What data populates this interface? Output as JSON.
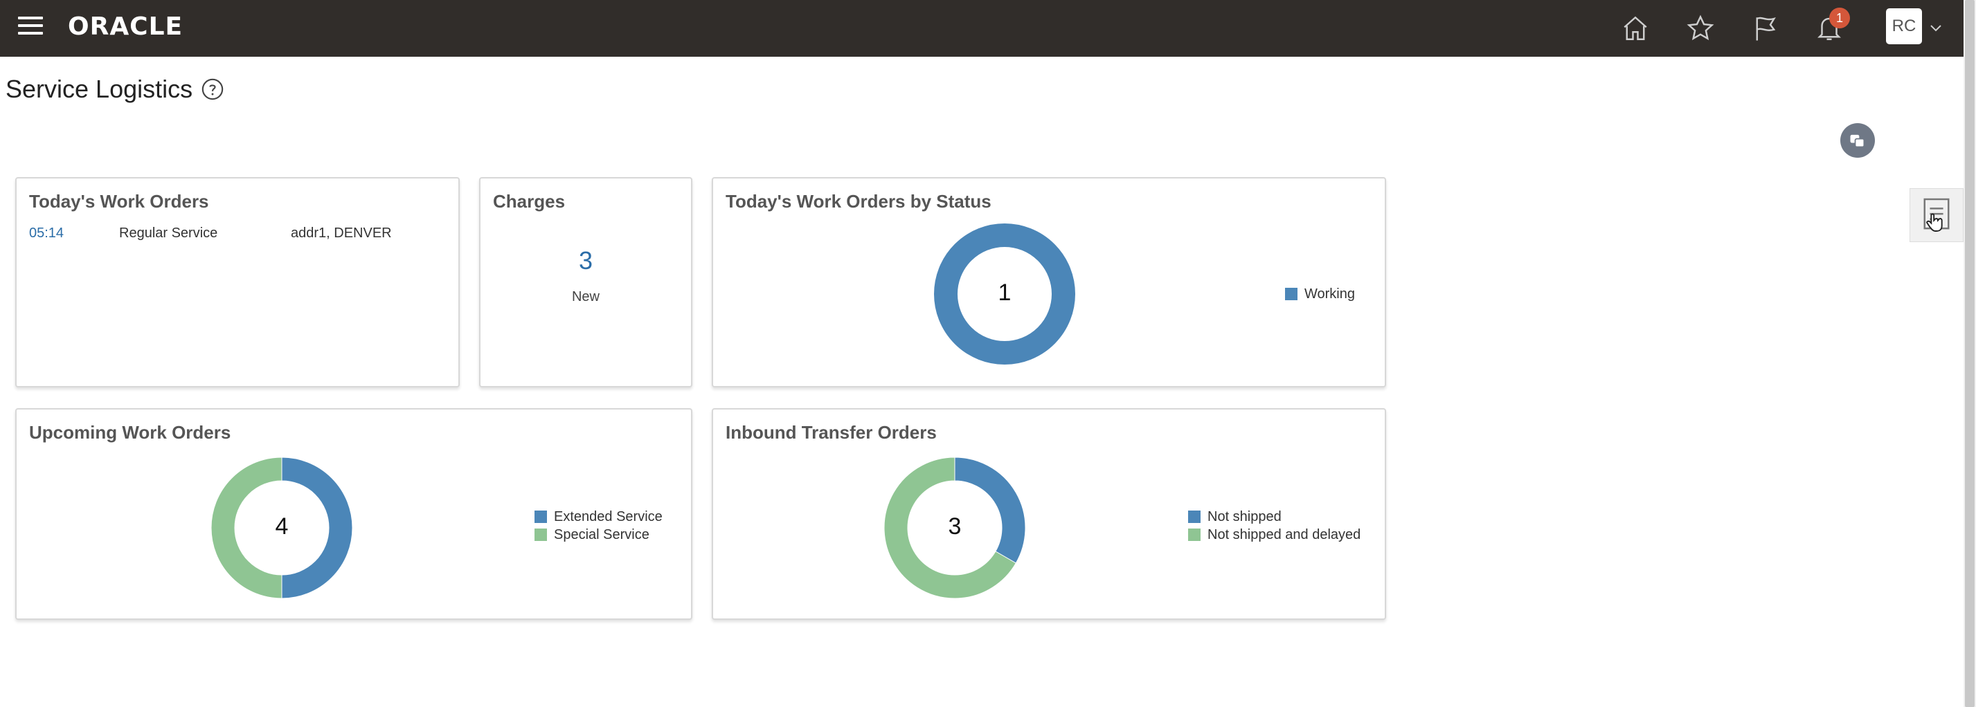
{
  "header": {
    "logo": "ORACLE",
    "notification_count": "1",
    "user_initials": "RC"
  },
  "page": {
    "title": "Service Logistics"
  },
  "todays_work_orders": {
    "title": "Today's Work Orders",
    "rows": [
      {
        "time": "05:14",
        "type": "Regular Service",
        "address": "addr1, DENVER"
      }
    ]
  },
  "charges": {
    "title": "Charges",
    "count": "3",
    "label": "New"
  },
  "work_orders_by_status": {
    "title": "Today's Work Orders by Status",
    "total": "1",
    "legend": [
      {
        "label": "Working",
        "color": "#4b86b8"
      }
    ]
  },
  "upcoming_work_orders": {
    "title": "Upcoming Work Orders",
    "total": "4",
    "legend": [
      {
        "label": "Extended Service",
        "color": "#4b86b8"
      },
      {
        "label": "Special Service",
        "color": "#8fc593"
      }
    ]
  },
  "inbound_transfer_orders": {
    "title": "Inbound Transfer Orders",
    "total": "3",
    "legend": [
      {
        "label": "Not shipped",
        "color": "#4b86b8"
      },
      {
        "label": "Not shipped and delayed",
        "color": "#8fc593"
      }
    ]
  },
  "chart_data": [
    {
      "type": "pie",
      "categories": [
        "Working"
      ],
      "values": [
        1
      ],
      "title": "Today's Work Orders by Status"
    },
    {
      "type": "pie",
      "categories": [
        "Extended Service",
        "Special Service"
      ],
      "values": [
        2,
        2
      ],
      "title": "Upcoming Work Orders"
    },
    {
      "type": "pie",
      "categories": [
        "Not shipped",
        "Not shipped and delayed"
      ],
      "values": [
        1,
        2
      ],
      "title": "Inbound Transfer Orders"
    }
  ],
  "colors": {
    "header_bg": "#312d2a",
    "accent_blue": "#4b86b8",
    "accent_green": "#8fc593",
    "link_blue": "#2b6da8",
    "badge_red": "#d4573a"
  }
}
